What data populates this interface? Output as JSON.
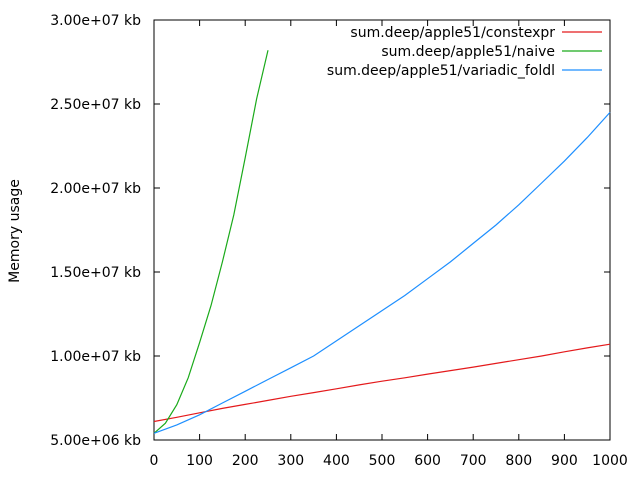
{
  "chart_data": {
    "type": "line",
    "title": "",
    "xlabel": "",
    "ylabel": "Memory usage",
    "xlim": [
      0,
      1000
    ],
    "ylim": [
      5000000,
      30000000
    ],
    "x_ticks": [
      0,
      100,
      200,
      300,
      400,
      500,
      600,
      700,
      800,
      900,
      1000
    ],
    "x_tick_labels": [
      "0",
      "100",
      "200",
      "300",
      "400",
      "500",
      "600",
      "700",
      "800",
      "900",
      "1000"
    ],
    "y_ticks": [
      5000000,
      10000000,
      15000000,
      20000000,
      25000000,
      30000000
    ],
    "y_tick_labels": [
      "5.00e+06 kb",
      "1.00e+07 kb",
      "1.50e+07 kb",
      "2.00e+07 kb",
      "2.50e+07 kb",
      "3.00e+07 kb"
    ],
    "grid": false,
    "legend_position": "top-right",
    "series": [
      {
        "name": "sum.deep/apple51/constexpr",
        "color": "#e41a1c",
        "x": [
          0,
          50,
          100,
          150,
          200,
          250,
          300,
          350,
          400,
          450,
          500,
          550,
          600,
          650,
          700,
          750,
          800,
          850,
          900,
          950,
          1000
        ],
        "y": [
          6100000,
          6350000,
          6620000,
          6880000,
          7120000,
          7360000,
          7600000,
          7820000,
          8050000,
          8280000,
          8500000,
          8700000,
          8920000,
          9130000,
          9340000,
          9560000,
          9780000,
          10000000,
          10250000,
          10480000,
          10700000
        ]
      },
      {
        "name": "sum.deep/apple51/naive",
        "color": "#1aaa1a",
        "x": [
          0,
          25,
          50,
          75,
          100,
          125,
          150,
          175,
          200,
          225,
          250
        ],
        "y": [
          5400000,
          6000000,
          7100000,
          8700000,
          10800000,
          13000000,
          15600000,
          18400000,
          21800000,
          25300000,
          28200000
        ]
      },
      {
        "name": "sum.deep/apple51/variadic_foldl",
        "color": "#1e8fff",
        "x": [
          0,
          50,
          100,
          150,
          200,
          250,
          300,
          350,
          400,
          450,
          500,
          550,
          600,
          650,
          700,
          750,
          800,
          850,
          900,
          950,
          1000
        ],
        "y": [
          5400000,
          5900000,
          6500000,
          7200000,
          7900000,
          8600000,
          9300000,
          10000000,
          10900000,
          11800000,
          12700000,
          13600000,
          14600000,
          15600000,
          16700000,
          17800000,
          19000000,
          20300000,
          21600000,
          23000000,
          24500000
        ]
      }
    ]
  }
}
